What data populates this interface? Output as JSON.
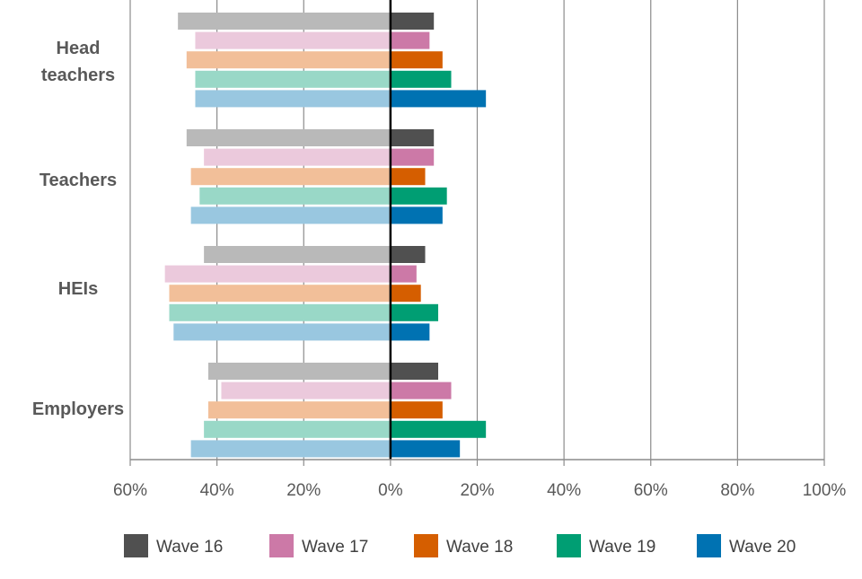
{
  "chart_data": {
    "type": "bar",
    "orientation": "horizontal-diverging",
    "title": "",
    "xlabel": "",
    "ylabel": "",
    "categories": [
      "Head teachers",
      "Teachers",
      "HEIs",
      "Employers"
    ],
    "category_lines": [
      [
        "Head",
        "teachers"
      ],
      [
        "Teachers"
      ],
      [
        "HEIs"
      ],
      [
        "Employers"
      ]
    ],
    "xlim": [
      -60,
      100
    ],
    "x_ticks": [
      -60,
      -40,
      -20,
      0,
      20,
      40,
      60,
      80,
      100
    ],
    "x_tick_labels": [
      "60%",
      "40%",
      "20%",
      "0%",
      "20%",
      "40%",
      "60%",
      "80%",
      "100%"
    ],
    "grid": true,
    "legend_position": "bottom",
    "series": [
      {
        "name": "Wave 16",
        "color": "#505050",
        "light_color": "#b9b9b9",
        "negative": [
          49,
          47,
          43,
          42
        ],
        "positive": [
          10,
          10,
          8,
          11
        ]
      },
      {
        "name": "Wave 17",
        "color": "#cc79a7",
        "light_color": "#ebc9dc",
        "negative": [
          45,
          43,
          52,
          39
        ],
        "positive": [
          9,
          10,
          6,
          14
        ]
      },
      {
        "name": "Wave 18",
        "color": "#d55e00",
        "light_color": "#f2bf99",
        "negative": [
          47,
          46,
          51,
          42
        ],
        "positive": [
          12,
          8,
          7,
          12
        ]
      },
      {
        "name": "Wave 19",
        "color": "#009e73",
        "light_color": "#99d8c7",
        "negative": [
          45,
          44,
          51,
          43
        ],
        "positive": [
          14,
          13,
          11,
          22
        ]
      },
      {
        "name": "Wave 20",
        "color": "#0072b2",
        "light_color": "#99c7e0",
        "negative": [
          45,
          46,
          50,
          46
        ],
        "positive": [
          22,
          12,
          9,
          16
        ]
      }
    ]
  }
}
